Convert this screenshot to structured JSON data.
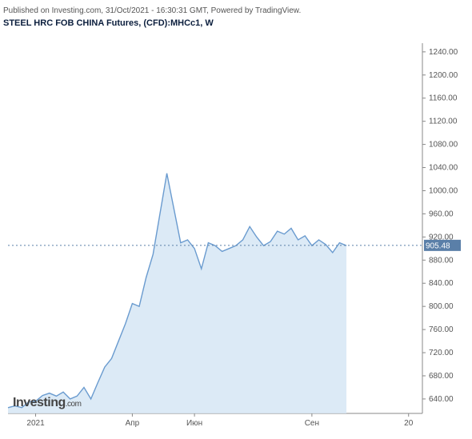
{
  "header": {
    "pubinfo": "Published on Investing.com, 31/Oct/2021 - 16:30:31 GMT, Powered by TradingView.",
    "title_prefix": "STEEL HRC FOB CHINA Futures, (CFD):MHCc1, ",
    "title_suffix": "W"
  },
  "watermark": {
    "main": "Investing",
    "suffix": ".com"
  },
  "chart": {
    "type": "area",
    "ymin": 615,
    "ymax": 1255,
    "yticks": [
      640,
      680,
      720,
      760,
      800,
      840,
      880,
      920,
      960,
      1000,
      1040,
      1080,
      1120,
      1160,
      1200,
      1240
    ],
    "xmin": 0,
    "xmax": 60,
    "xticks": [
      {
        "x": 4,
        "label": "2021"
      },
      {
        "x": 18,
        "label": "Апр"
      },
      {
        "x": 27,
        "label": "Июн"
      },
      {
        "x": 44,
        "label": "Сен"
      },
      {
        "x": 58,
        "label": "20"
      }
    ],
    "current_value": 905.48,
    "current_label": "905.48",
    "line_color": "#6a9bcf",
    "fill_color": "#d6e6f5",
    "fill_opacity": 0.85,
    "axis_color": "#888888",
    "tick_text_color": "#555555",
    "dash_color": "#5a7fa8",
    "tag_bg": "#5a7fa8",
    "background": "#ffffff",
    "series": [
      {
        "x": 0,
        "y": 625
      },
      {
        "x": 1,
        "y": 628
      },
      {
        "x": 2,
        "y": 625
      },
      {
        "x": 3,
        "y": 635
      },
      {
        "x": 4,
        "y": 636
      },
      {
        "x": 5,
        "y": 646
      },
      {
        "x": 6,
        "y": 650
      },
      {
        "x": 7,
        "y": 645
      },
      {
        "x": 8,
        "y": 652
      },
      {
        "x": 9,
        "y": 640
      },
      {
        "x": 10,
        "y": 645
      },
      {
        "x": 11,
        "y": 660
      },
      {
        "x": 12,
        "y": 640
      },
      {
        "x": 13,
        "y": 668
      },
      {
        "x": 14,
        "y": 695
      },
      {
        "x": 15,
        "y": 710
      },
      {
        "x": 16,
        "y": 740
      },
      {
        "x": 17,
        "y": 770
      },
      {
        "x": 18,
        "y": 805
      },
      {
        "x": 19,
        "y": 800
      },
      {
        "x": 20,
        "y": 850
      },
      {
        "x": 21,
        "y": 890
      },
      {
        "x": 22,
        "y": 960
      },
      {
        "x": 23,
        "y": 1030
      },
      {
        "x": 24,
        "y": 970
      },
      {
        "x": 25,
        "y": 910
      },
      {
        "x": 26,
        "y": 915
      },
      {
        "x": 27,
        "y": 900
      },
      {
        "x": 28,
        "y": 865
      },
      {
        "x": 29,
        "y": 910
      },
      {
        "x": 30,
        "y": 905
      },
      {
        "x": 31,
        "y": 895
      },
      {
        "x": 32,
        "y": 900
      },
      {
        "x": 33,
        "y": 905
      },
      {
        "x": 34,
        "y": 915
      },
      {
        "x": 35,
        "y": 938
      },
      {
        "x": 36,
        "y": 920
      },
      {
        "x": 37,
        "y": 905
      },
      {
        "x": 38,
        "y": 912
      },
      {
        "x": 39,
        "y": 930
      },
      {
        "x": 40,
        "y": 925
      },
      {
        "x": 41,
        "y": 935
      },
      {
        "x": 42,
        "y": 915
      },
      {
        "x": 43,
        "y": 922
      },
      {
        "x": 44,
        "y": 905
      },
      {
        "x": 45,
        "y": 915
      },
      {
        "x": 46,
        "y": 907
      },
      {
        "x": 47,
        "y": 893
      },
      {
        "x": 48,
        "y": 910
      },
      {
        "x": 49,
        "y": 905
      }
    ]
  }
}
